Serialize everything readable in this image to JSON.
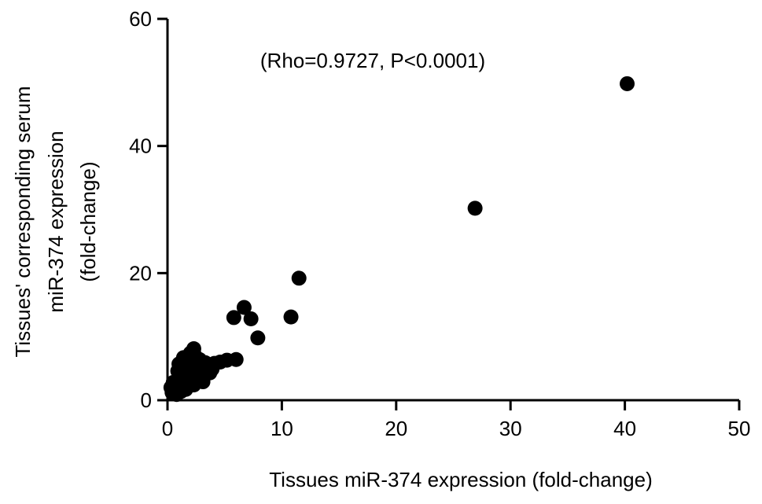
{
  "chart_data": {
    "type": "scatter",
    "title": "",
    "xlabel": "Tissues miR-374 expression (fold-change)",
    "ylabel_lines": [
      "Tissues' corresponding serum",
      "miR-374 expression",
      "(fold-change)"
    ],
    "annotation": "(Rho=0.9727, P<0.0001)",
    "xlim": [
      0,
      50
    ],
    "ylim": [
      0,
      60
    ],
    "xticks": [
      0,
      10,
      20,
      30,
      40,
      50
    ],
    "yticks": [
      0,
      20,
      40,
      60
    ],
    "grid": false,
    "legend": "none",
    "marker_color": "#000000",
    "points": [
      [
        40.2,
        49.8
      ],
      [
        26.9,
        30.2
      ],
      [
        11.5,
        19.2
      ],
      [
        10.8,
        13.1
      ],
      [
        6.7,
        14.6
      ],
      [
        7.3,
        12.8
      ],
      [
        5.8,
        13.0
      ],
      [
        7.9,
        9.8
      ],
      [
        6.0,
        6.4
      ],
      [
        5.2,
        6.3
      ],
      [
        4.6,
        6.0
      ],
      [
        4.1,
        5.8
      ],
      [
        3.7,
        4.3
      ],
      [
        3.3,
        5.9
      ],
      [
        3.0,
        4.8
      ],
      [
        2.8,
        6.4
      ],
      [
        2.6,
        5.2
      ],
      [
        2.5,
        3.6
      ],
      [
        2.4,
        7.0
      ],
      [
        2.3,
        8.1
      ],
      [
        2.2,
        4.5
      ],
      [
        2.1,
        6.1
      ],
      [
        2.0,
        3.1
      ],
      [
        1.9,
        5.6
      ],
      [
        1.8,
        4.0
      ],
      [
        1.7,
        2.4
      ],
      [
        1.6,
        6.3
      ],
      [
        1.5,
        3.5
      ],
      [
        1.4,
        4.9
      ],
      [
        1.3,
        2.2
      ],
      [
        1.2,
        5.3
      ],
      [
        1.1,
        3.8
      ],
      [
        1.0,
        1.9
      ],
      [
        0.9,
        4.6
      ],
      [
        0.8,
        3.0
      ],
      [
        0.7,
        2.5
      ],
      [
        0.6,
        1.6
      ],
      [
        0.5,
        2.8
      ],
      [
        0.4,
        1.2
      ],
      [
        0.3,
        2.0
      ],
      [
        2.7,
        3.9
      ],
      [
        3.1,
        2.9
      ],
      [
        3.5,
        5.1
      ],
      [
        2.0,
        7.4
      ],
      [
        1.6,
        1.7
      ],
      [
        1.2,
        1.4
      ],
      [
        0.8,
        0.9
      ],
      [
        2.3,
        2.4
      ],
      [
        2.9,
        5.5
      ],
      [
        3.9,
        4.9
      ],
      [
        1.4,
        6.7
      ],
      [
        1.0,
        5.7
      ]
    ]
  }
}
